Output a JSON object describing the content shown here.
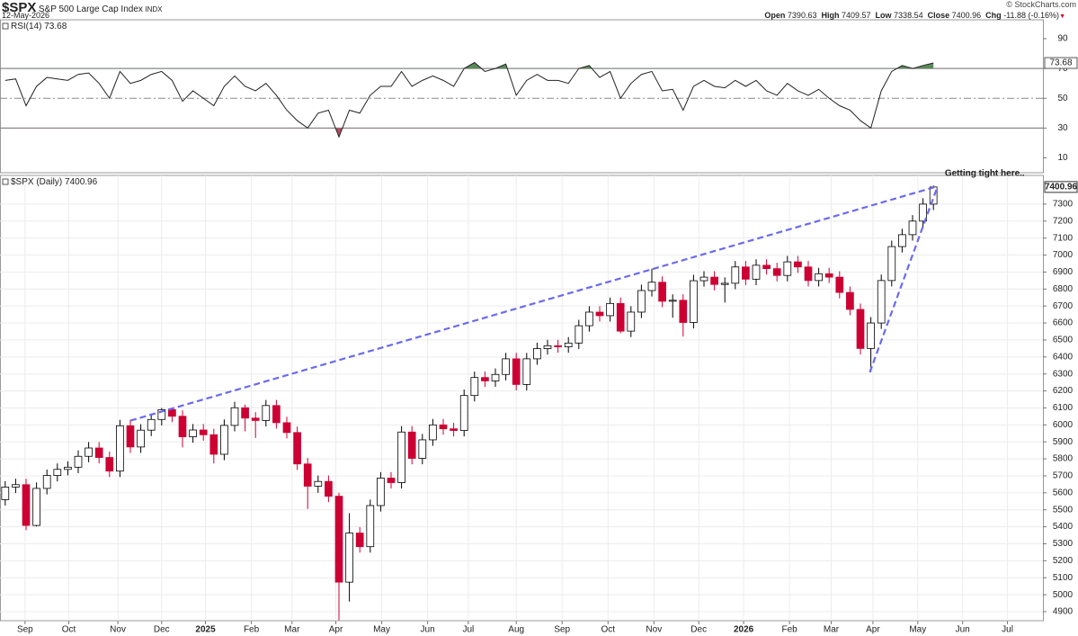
{
  "header": {
    "symbol": "$SPX",
    "name": "S&P 500 Large Cap Index",
    "exchange": "INDX",
    "date": "12-May-2026",
    "credit": "© StockCharts.com",
    "quote": [
      {
        "label": "Open",
        "value": 7390.63
      },
      {
        "label": "High",
        "value": 7409.57
      },
      {
        "label": "Low",
        "value": 7338.54
      },
      {
        "label": "Close",
        "value": 7400.96
      },
      {
        "label": "Chg",
        "value": -11.88,
        "value_label": "-11.88 (-0.16%)"
      }
    ]
  },
  "chart_data": [
    {
      "type": "line",
      "title": "RSI(14)",
      "color": "#222222",
      "overbought_color": "#5a8a5a",
      "oversold_color": "#b05060",
      "reference_lines": [
        30,
        70
      ],
      "midline": 50,
      "ylim": [
        0,
        102.7
      ],
      "yticks": [
        10,
        30,
        50,
        70,
        90
      ],
      "xlim": [
        -0.5,
        99.5
      ],
      "values": [
        62,
        63,
        45,
        58,
        64,
        63,
        62,
        66,
        67,
        60,
        50,
        68,
        60,
        62,
        66,
        68,
        62,
        48,
        55,
        50,
        45,
        58,
        65,
        58,
        55,
        60,
        52,
        42,
        35,
        30,
        40,
        42,
        24,
        42,
        40,
        52,
        58,
        58,
        68,
        58,
        62,
        65,
        62,
        58,
        70,
        74,
        68,
        70,
        73,
        52,
        62,
        66,
        62,
        62,
        60,
        70,
        72,
        64,
        68,
        50,
        60,
        66,
        68,
        55,
        56,
        42,
        58,
        62,
        58,
        57,
        62,
        58,
        62,
        55,
        52,
        60,
        55,
        52,
        56,
        50,
        45,
        42,
        35,
        30,
        55,
        68,
        72,
        70,
        72,
        73.68
      ]
    },
    {
      "type": "candlestick",
      "title": "$SPX (Daily)",
      "up_color": "#000000",
      "down_color": "#cc0033",
      "grid": true,
      "ylim": [
        4847,
        7469
      ],
      "yticks": [
        4900,
        5000,
        5100,
        5200,
        5300,
        5400,
        5500,
        5600,
        5700,
        5800,
        5900,
        6000,
        6100,
        6200,
        6300,
        6400,
        6500,
        6600,
        6700,
        6800,
        6900,
        7000,
        7100,
        7200,
        7300
      ],
      "xlim": [
        -0.5,
        99.5
      ],
      "xticks": [
        {
          "value": 1.9,
          "label": "Sep"
        },
        {
          "value": 6.1,
          "label": "Oct"
        },
        {
          "value": 10.8,
          "label": "Nov"
        },
        {
          "value": 15.0,
          "label": "Dec"
        },
        {
          "value": 19.2,
          "label": "2025"
        },
        {
          "value": 23.6,
          "label": "Feb"
        },
        {
          "value": 27.5,
          "label": "Mar"
        },
        {
          "value": 31.7,
          "label": "Apr"
        },
        {
          "value": 36.1,
          "label": "May"
        },
        {
          "value": 40.5,
          "label": "Jun"
        },
        {
          "value": 44.4,
          "label": "Jul"
        },
        {
          "value": 49.0,
          "label": "Aug"
        },
        {
          "value": 53.4,
          "label": "Sep"
        },
        {
          "value": 57.8,
          "label": "Oct"
        },
        {
          "value": 62.2,
          "label": "Nov"
        },
        {
          "value": 66.5,
          "label": "Dec"
        },
        {
          "value": 70.8,
          "label": "2026"
        },
        {
          "value": 75.2,
          "label": "Feb"
        },
        {
          "value": 79.2,
          "label": "Mar"
        },
        {
          "value": 83.2,
          "label": "Apr"
        },
        {
          "value": 87.5,
          "label": "May"
        },
        {
          "value": 91.8,
          "label": "Jun"
        },
        {
          "value": 96.1,
          "label": "Jul"
        }
      ],
      "open": [
        5560,
        5634,
        5648,
        5408,
        5626,
        5702,
        5738,
        5751,
        5815,
        5864,
        5808,
        5728,
        5995,
        5870,
        5969,
        6032,
        6090,
        6051,
        5930,
        5970,
        5942,
        5827,
        5997,
        6101,
        6040,
        6026,
        6114,
        6013,
        5955,
        5770,
        5639,
        5667,
        5580,
        5074,
        5363,
        5283,
        5525,
        5687,
        5660,
        5958,
        5803,
        5912,
        6000,
        5977,
        5967,
        6173,
        6279,
        6259,
        6297,
        6389,
        6238,
        6389,
        6449,
        6466,
        6460,
        6482,
        6584,
        6664,
        6643,
        6715,
        6552,
        6664,
        6791,
        6840,
        6728,
        6734,
        6603,
        6849,
        6870,
        6827,
        6834,
        6930,
        6858,
        6940,
        6920,
        6880,
        6960,
        6930,
        6850,
        6890,
        6870,
        6780,
        6680,
        6450,
        6600,
        6850,
        7050,
        7120,
        7200,
        7300
      ],
      "high": [
        5669,
        5683,
        5683,
        5661,
        5737,
        5773,
        5786,
        5850,
        5899,
        5899,
        5843,
        6030,
        6030,
        6004,
        6067,
        6100,
        6100,
        6086,
        6005,
        6005,
        5977,
        6032,
        6136,
        6120,
        6075,
        6147,
        6147,
        6048,
        5990,
        5805,
        5702,
        5702,
        5600,
        5480,
        5398,
        5560,
        5722,
        5722,
        5993,
        5993,
        5947,
        6035,
        6035,
        6012,
        6208,
        6314,
        6314,
        6332,
        6424,
        6424,
        6424,
        6484,
        6501,
        6501,
        6517,
        6619,
        6699,
        6699,
        6750,
        6750,
        6699,
        6826,
        6920,
        6875,
        6769,
        6769,
        6884,
        6905,
        6905,
        6869,
        6965,
        6965,
        6975,
        6975,
        6955,
        6995,
        6995,
        6965,
        6925,
        6925,
        6905,
        6815,
        6715,
        6635,
        6885,
        7085,
        7155,
        7235,
        7335,
        7409.57
      ],
      "low": [
        5525,
        5599,
        5380,
        5402,
        5591,
        5667,
        5703,
        5716,
        5780,
        5773,
        5693,
        5693,
        5835,
        5835,
        5934,
        5997,
        6016,
        5867,
        5895,
        5907,
        5773,
        5792,
        5962,
        5962,
        5923,
        5991,
        5978,
        5920,
        5735,
        5505,
        5600,
        5545,
        4850,
        4960,
        5248,
        5248,
        5490,
        5625,
        5625,
        5768,
        5768,
        5877,
        5942,
        5932,
        5932,
        6138,
        6224,
        6224,
        6262,
        6203,
        6203,
        6354,
        6414,
        6425,
        6425,
        6447,
        6549,
        6608,
        6608,
        6540,
        6517,
        6629,
        6756,
        6693,
        6631,
        6520,
        6568,
        6814,
        6792,
        6720,
        6799,
        6823,
        6823,
        6885,
        6845,
        6845,
        6895,
        6815,
        6815,
        6835,
        6745,
        6645,
        6415,
        6310,
        6565,
        6815,
        7015,
        7085,
        7165,
        7265
      ],
      "close": [
        5634,
        5648,
        5408,
        5626,
        5702,
        5738,
        5751,
        5815,
        5864,
        5808,
        5728,
        5995,
        5870,
        5969,
        6032,
        6090,
        6051,
        5930,
        5970,
        5942,
        5827,
        5997,
        6101,
        6040,
        6026,
        6114,
        6013,
        5955,
        5770,
        5639,
        5667,
        5580,
        5074,
        5363,
        5283,
        5525,
        5687,
        5660,
        5958,
        5803,
        5912,
        6000,
        5977,
        5967,
        6173,
        6279,
        6259,
        6297,
        6389,
        6238,
        6389,
        6449,
        6466,
        6460,
        6482,
        6584,
        6664,
        6643,
        6715,
        6552,
        6664,
        6791,
        6840,
        6728,
        6734,
        6603,
        6849,
        6870,
        6827,
        6834,
        6930,
        6858,
        6940,
        6920,
        6880,
        6960,
        6930,
        6850,
        6890,
        6870,
        6780,
        6680,
        6450,
        6600,
        6850,
        7050,
        7120,
        7200,
        7300,
        7400.96
      ],
      "trendline_color": "#6a6af0",
      "trendlines": [
        {
          "x": [
            12.0,
            89.4
          ],
          "y": [
            6025,
            7405
          ]
        },
        {
          "x": [
            82.9,
            89.4
          ],
          "y": [
            6310,
            7405
          ]
        }
      ],
      "annotation": "Getting tight here.."
    }
  ]
}
